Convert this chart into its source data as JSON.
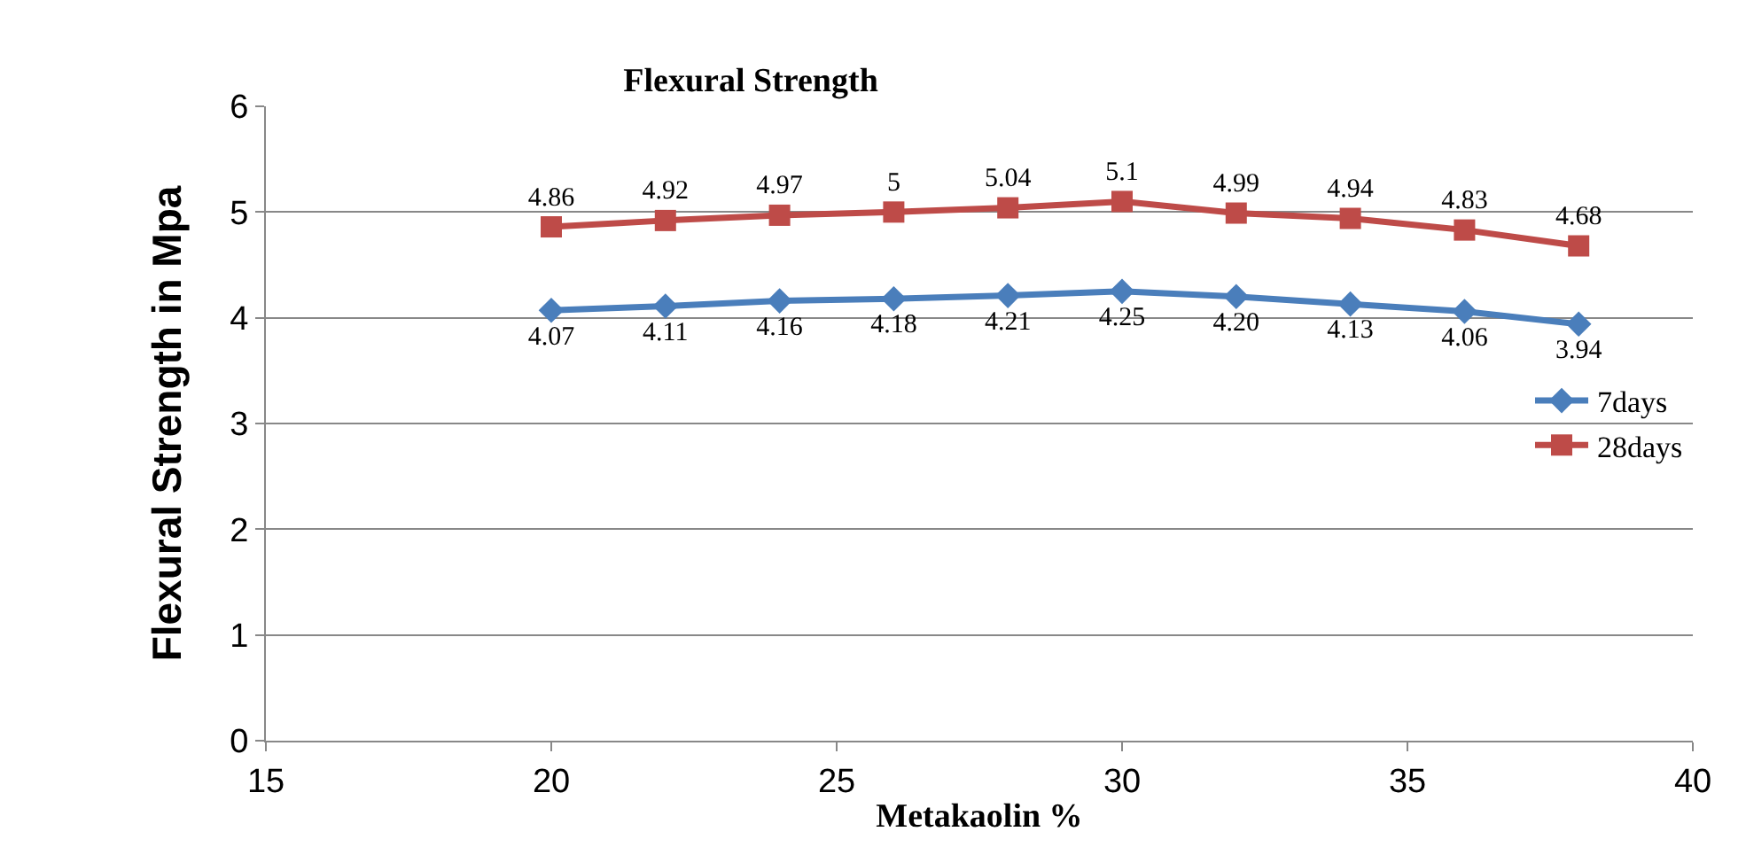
{
  "chart_data": {
    "type": "line",
    "title": "Flexural Strength",
    "xlabel": "Metakaolin %",
    "ylabel": "Flexural Strength in Mpa",
    "x": [
      20,
      22,
      24,
      26,
      28,
      30,
      32,
      34,
      36,
      38
    ],
    "series": [
      {
        "name": "7days",
        "color": "#4a7ebb",
        "marker": "diamond",
        "values": [
          4.07,
          4.11,
          4.16,
          4.18,
          4.21,
          4.25,
          4.2,
          4.13,
          4.06,
          3.94
        ],
        "value_labels": [
          "4.07",
          "4.11",
          "4.16",
          "4.18",
          "4.21",
          "4.25",
          "4.20",
          "4.13",
          "4.06",
          "3.94"
        ]
      },
      {
        "name": "28days",
        "color": "#be4b48",
        "marker": "square",
        "values": [
          4.86,
          4.92,
          4.97,
          5,
          5.04,
          5.1,
          4.99,
          4.94,
          4.83,
          4.68
        ],
        "value_labels": [
          "4.86",
          "4.92",
          "4.97",
          "5",
          "5.04",
          "5.1",
          "4.99",
          "4.94",
          "4.83",
          "4.68"
        ]
      }
    ],
    "xlim": [
      15,
      40
    ],
    "xticks": [
      15,
      20,
      25,
      30,
      35,
      40
    ],
    "ylim": [
      0,
      6
    ],
    "yticks": [
      0,
      1,
      2,
      3,
      4,
      5,
      6
    ],
    "grid": "y",
    "legend": "right",
    "line_style": "solid"
  }
}
